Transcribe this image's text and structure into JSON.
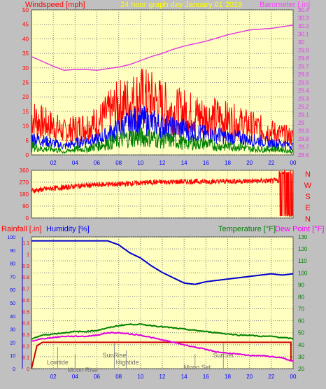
{
  "header": {
    "title": "24 hour graph day   January 01 2019",
    "wind_label": "Windspeed [mph]",
    "baro_label": "Barometer [.in]",
    "rain_label": "Rainfall [.in]",
    "humidity_label": "Humidity [%]",
    "temp_label": "Temperature [°F]",
    "dew_label": "Dew Point [°F]"
  },
  "colors": {
    "plot_bg": "#ffffc0",
    "wind_gust": "#ff0000",
    "wind_avg": "#0000ff",
    "wind_low": "#008000",
    "barometer": "#e040e0",
    "direction": "#ff0000",
    "rain": "#cc0000",
    "humidity": "#0000cc",
    "temperature": "#008000",
    "dewpoint": "#e000e0",
    "label_red": "#ff0000",
    "label_blue": "#0000ff",
    "label_green": "#008000",
    "label_magenta": "#ff00ff",
    "title_yellow": "#ffff00"
  },
  "chart_data": [
    {
      "id": "wind",
      "type": "line",
      "xlabel": "",
      "ylabel": "Windspeed [mph]",
      "y2label": "Barometer [.in]",
      "ylim": [
        0,
        50
      ],
      "y2lim": [
        28.6,
        30.4
      ],
      "x_ticks": [
        "02",
        "04",
        "06",
        "08",
        "10",
        "12",
        "14",
        "16",
        "18",
        "20",
        "22",
        "00"
      ],
      "y_ticks": [
        "0",
        "5",
        "10",
        "15",
        "20",
        "25",
        "30",
        "35",
        "40",
        "45",
        "50"
      ],
      "y2_ticks": [
        "28.6",
        "28.7",
        "28.8",
        "28.9",
        "29",
        "29.1",
        "29.2",
        "29.3",
        "29.4",
        "29.5",
        "29.6",
        "29.7",
        "29.8",
        "29.9",
        "30",
        "30.1",
        "30.2",
        "30.3",
        "30.4"
      ],
      "series": [
        {
          "color_key": "wind_gust",
          "x": [
            0,
            1,
            2,
            3,
            4,
            5,
            6,
            7,
            8,
            9,
            10,
            11,
            12,
            13,
            14,
            15,
            16,
            17,
            18,
            19,
            20,
            21,
            22,
            23,
            24
          ],
          "values": [
            13,
            11,
            10,
            8,
            9,
            10,
            11,
            14,
            17,
            18,
            20,
            19,
            17,
            15,
            15,
            14,
            13,
            13,
            12,
            11,
            10,
            9,
            8,
            7,
            6
          ]
        },
        {
          "color_key": "wind_avg",
          "x": [
            0,
            1,
            2,
            3,
            4,
            5,
            6,
            7,
            8,
            9,
            10,
            11,
            12,
            13,
            14,
            15,
            16,
            17,
            18,
            19,
            20,
            21,
            22,
            23,
            24
          ],
          "values": [
            6,
            5,
            4,
            3,
            4,
            5,
            5,
            7,
            9,
            11,
            12,
            11,
            10,
            9,
            9,
            8,
            7,
            7,
            6,
            6,
            5,
            5,
            4,
            4,
            3
          ]
        },
        {
          "color_key": "wind_low",
          "x": [
            0,
            1,
            2,
            3,
            4,
            5,
            6,
            7,
            8,
            9,
            10,
            11,
            12,
            13,
            14,
            15,
            16,
            17,
            18,
            19,
            20,
            21,
            22,
            23,
            24
          ],
          "values": [
            3,
            2,
            2,
            1,
            2,
            2,
            3,
            4,
            5,
            6,
            6,
            6,
            5,
            5,
            4,
            4,
            4,
            3,
            3,
            3,
            2,
            2,
            2,
            2,
            1
          ]
        },
        {
          "color_key": "barometer",
          "axis": "y2",
          "x": [
            0,
            1,
            2,
            3,
            4,
            5,
            6,
            7,
            8,
            9,
            10,
            11,
            12,
            13,
            14,
            15,
            16,
            17,
            18,
            19,
            20,
            21,
            22,
            23,
            24
          ],
          "values": [
            29.82,
            29.76,
            29.7,
            29.65,
            29.66,
            29.66,
            29.65,
            29.67,
            29.69,
            29.72,
            29.77,
            29.82,
            29.86,
            29.91,
            29.95,
            29.98,
            30.01,
            30.05,
            30.09,
            30.12,
            30.15,
            30.16,
            30.17,
            30.19,
            30.21
          ]
        }
      ]
    },
    {
      "id": "direction",
      "type": "line",
      "ylim": [
        0,
        360
      ],
      "y_ticks": [
        "0",
        "90",
        "180",
        "270",
        "360"
      ],
      "right_labels": [
        "N",
        "W",
        "S",
        "E",
        "N"
      ],
      "series": [
        {
          "color_key": "direction",
          "x": [
            0,
            1,
            2,
            3,
            4,
            5,
            6,
            7,
            8,
            9,
            10,
            11,
            12,
            13,
            14,
            15,
            16,
            17,
            18,
            19,
            20,
            21,
            22,
            22.7,
            23,
            24
          ],
          "values": [
            205,
            215,
            225,
            230,
            240,
            245,
            250,
            255,
            255,
            260,
            265,
            270,
            272,
            272,
            275,
            275,
            275,
            275,
            278,
            278,
            278,
            280,
            280,
            282,
            180,
            180
          ]
        }
      ]
    },
    {
      "id": "climate",
      "type": "line",
      "ylim": [
        0,
        100
      ],
      "y_ticks_left": [
        "0",
        "10",
        "20",
        "30",
        "40",
        "50",
        "60",
        "70",
        "80",
        "90",
        "100"
      ],
      "y_ticks_rain": [
        "0",
        "0.1",
        "0.2",
        "0.3",
        "0.4",
        "0.5",
        "0.6",
        "0.7",
        "0.8",
        "0.9",
        "1",
        "1.1"
      ],
      "y2lim": [
        20,
        130
      ],
      "y_ticks_right": [
        "20",
        "30",
        "40",
        "50",
        "60",
        "70",
        "80",
        "90",
        "100",
        "110",
        "120",
        "130"
      ],
      "annotations": [
        "Lowtide",
        "Moon Rise",
        "SunRise",
        "Hightide",
        "Moon Set",
        "SunSet"
      ],
      "series": [
        {
          "color_key": "rain",
          "axis": "rain",
          "x": [
            0,
            0.5,
            1,
            23.8,
            24
          ],
          "values": [
            0,
            0.2,
            0.23,
            0.23,
            0.07
          ]
        },
        {
          "color_key": "humidity",
          "x": [
            0,
            1,
            2,
            3,
            4,
            5,
            6,
            7,
            8,
            9,
            10,
            11,
            12,
            13,
            14,
            15,
            16,
            17,
            18,
            19,
            20,
            21,
            22,
            23,
            24
          ],
          "values": [
            97,
            97,
            97,
            97,
            97,
            97,
            97,
            97,
            94,
            88,
            84,
            78,
            73,
            69,
            65,
            64,
            66,
            67,
            68,
            69,
            70,
            71,
            72,
            71,
            72
          ]
        },
        {
          "color_key": "temperature",
          "axis": "y2",
          "x": [
            0,
            1,
            2,
            3,
            4,
            5,
            6,
            7,
            8,
            9,
            10,
            11,
            12,
            13,
            14,
            15,
            16,
            17,
            18,
            19,
            20,
            21,
            22,
            23,
            24
          ],
          "values": [
            45,
            48,
            49,
            50,
            51,
            51,
            52,
            54,
            56,
            57,
            57,
            56,
            55,
            54,
            53,
            52,
            51,
            50,
            49,
            48,
            48,
            47,
            47,
            46,
            45
          ]
        },
        {
          "color_key": "dewpoint",
          "axis": "y2",
          "x": [
            0,
            1,
            2,
            3,
            4,
            5,
            6,
            7,
            8,
            9,
            10,
            11,
            12,
            13,
            14,
            15,
            16,
            17,
            18,
            19,
            20,
            21,
            22,
            23,
            24
          ],
          "values": [
            43,
            45,
            46,
            47,
            47,
            47,
            48,
            50,
            50,
            49,
            48,
            46,
            44,
            42,
            40,
            38,
            36,
            34,
            33,
            32,
            31,
            31,
            30,
            29,
            26
          ]
        }
      ]
    }
  ]
}
